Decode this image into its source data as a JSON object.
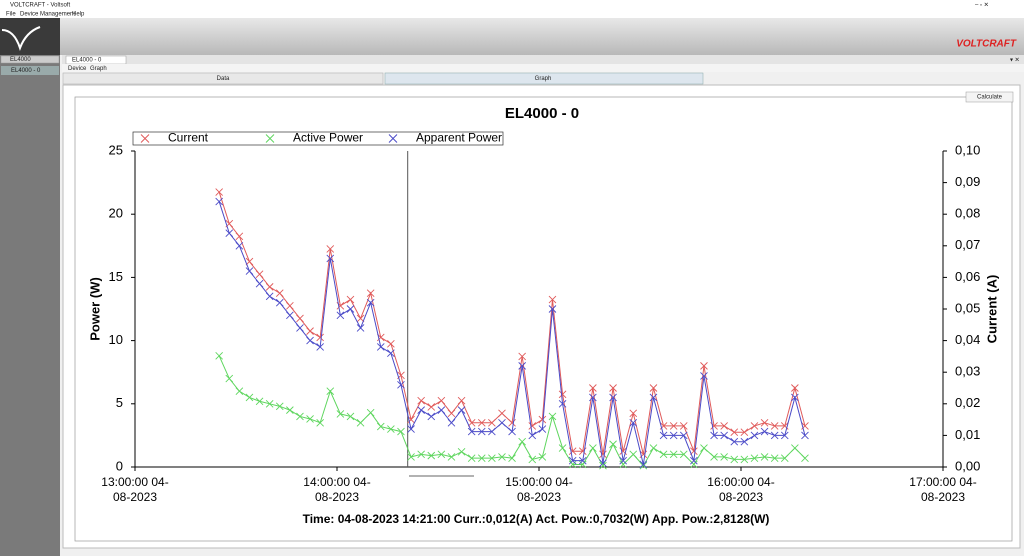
{
  "ui": {
    "window_title": "VOLTCRAFT - Voltsoft",
    "menu": [
      "File",
      "Device Management",
      "Help"
    ],
    "brand": "VOLTCRAFT",
    "sidebar": [
      "EL4000",
      "EL4000 - 0"
    ],
    "tab": "EL4000 - 0",
    "subtabs": [
      "Device",
      "Graph"
    ],
    "buttons": [
      "Data",
      "Graph"
    ],
    "calculate": "Calculate"
  },
  "chart_data": {
    "type": "line",
    "title": "EL4000 - 0",
    "y_label": "Power (W)",
    "y2_label": "Current (A)",
    "readout": "Time: 04-08-2023 14:21:00 Curr.:0,012(A) Act. Pow.:0,7032(W) App. Pow.:2,8128(W)",
    "cursor_x": "14:21:00 04-08-2023",
    "x": [
      "13:25:00 04-08-2023",
      "13:28:00 04-08-2023",
      "13:31:00 04-08-2023",
      "13:34:00 04-08-2023",
      "13:37:00 04-08-2023",
      "13:40:00 04-08-2023",
      "13:43:00 04-08-2023",
      "13:46:00 04-08-2023",
      "13:49:00 04-08-2023",
      "13:52:00 04-08-2023",
      "13:55:00 04-08-2023",
      "13:58:00 04-08-2023",
      "14:01:00 04-08-2023",
      "14:04:00 04-08-2023",
      "14:07:00 04-08-2023",
      "14:10:00 04-08-2023",
      "14:13:00 04-08-2023",
      "14:16:00 04-08-2023",
      "14:19:00 04-08-2023",
      "14:22:00 04-08-2023",
      "14:25:00 04-08-2023",
      "14:28:00 04-08-2023",
      "14:31:00 04-08-2023",
      "14:34:00 04-08-2023",
      "14:37:00 04-08-2023",
      "14:40:00 04-08-2023",
      "14:43:00 04-08-2023",
      "14:46:00 04-08-2023",
      "14:49:00 04-08-2023",
      "14:52:00 04-08-2023",
      "14:55:00 04-08-2023",
      "14:58:00 04-08-2023",
      "15:01:00 04-08-2023",
      "15:04:00 04-08-2023",
      "15:07:00 04-08-2023",
      "15:10:00 04-08-2023",
      "15:13:00 04-08-2023",
      "15:16:00 04-08-2023",
      "15:19:00 04-08-2023",
      "15:22:00 04-08-2023",
      "15:25:00 04-08-2023",
      "15:28:00 04-08-2023",
      "15:31:00 04-08-2023",
      "15:34:00 04-08-2023",
      "15:37:00 04-08-2023",
      "15:40:00 04-08-2023",
      "15:43:00 04-08-2023",
      "15:46:00 04-08-2023",
      "15:49:00 04-08-2023",
      "15:52:00 04-08-2023",
      "15:55:00 04-08-2023",
      "15:58:00 04-08-2023",
      "16:01:00 04-08-2023",
      "16:04:00 04-08-2023",
      "16:07:00 04-08-2023",
      "16:10:00 04-08-2023",
      "16:13:00 04-08-2023",
      "16:16:00 04-08-2023",
      "16:19:00 04-08-2023"
    ],
    "series": [
      {
        "name": "Current",
        "color": "#e05a5a",
        "axis": "y2",
        "values": [
          0.087,
          0.077,
          0.073,
          0.065,
          0.061,
          0.057,
          0.055,
          0.051,
          0.047,
          0.043,
          0.041,
          0.069,
          0.051,
          0.053,
          0.047,
          0.055,
          0.041,
          0.039,
          0.029,
          0.015,
          0.021,
          0.019,
          0.021,
          0.017,
          0.021,
          0.014,
          0.014,
          0.014,
          0.017,
          0.014,
          0.035,
          0.013,
          0.015,
          0.053,
          0.023,
          0.005,
          0.005,
          0.025,
          0.004,
          0.025,
          0.005,
          0.017,
          0.004,
          0.025,
          0.013,
          0.013,
          0.013,
          0.005,
          0.032,
          0.013,
          0.013,
          0.011,
          0.011,
          0.013,
          0.014,
          0.013,
          0.013,
          0.025,
          0.013
        ]
      },
      {
        "name": "Active Power",
        "color": "#5ed65e",
        "values": [
          8.8,
          7,
          6,
          5.5,
          5.2,
          5,
          4.8,
          4.5,
          4,
          3.8,
          3.5,
          6,
          4.2,
          4,
          3.5,
          4.3,
          3.2,
          3,
          2.8,
          0.8,
          1,
          0.9,
          1,
          0.8,
          1.2,
          0.7,
          0.7,
          0.7,
          0.8,
          0.7,
          2,
          0.6,
          0.8,
          4,
          1.5,
          0.2,
          0.2,
          1.5,
          0.1,
          1.8,
          0.2,
          1,
          0.1,
          1.5,
          1,
          1,
          1,
          0.2,
          1.5,
          0.8,
          0.8,
          0.6,
          0.6,
          0.7,
          0.8,
          0.7,
          0.7,
          1.5,
          0.7
        ]
      },
      {
        "name": "Apparent Power",
        "color": "#4b4bc8",
        "values": [
          21,
          18.5,
          17.5,
          15.5,
          14.5,
          13.5,
          13,
          12,
          11,
          10,
          9.5,
          16.5,
          12,
          12.5,
          11,
          13,
          9.5,
          9,
          6.5,
          3,
          4.5,
          4,
          4.5,
          3.5,
          4.5,
          2.8,
          2.8,
          2.8,
          3.5,
          2.8,
          8,
          2.5,
          3,
          12.5,
          5,
          0.5,
          0.5,
          5.5,
          0.3,
          5.5,
          0.5,
          3.5,
          0.2,
          5.5,
          2.5,
          2.5,
          2.5,
          0.5,
          7.2,
          2.5,
          2.5,
          2,
          2,
          2.5,
          2.8,
          2.5,
          2.5,
          5.5,
          2.5
        ]
      }
    ],
    "xlim": [
      "13:00:00 04-08-2023",
      "17:00:00 04-08-2023"
    ],
    "xticks": [
      "13:00:00 04-08-2023",
      "14:00:00 04-08-2023",
      "15:00:00 04-08-2023",
      "16:00:00 04-08-2023",
      "17:00:00 04-08-2023"
    ],
    "ylim": [
      0,
      25
    ],
    "yticks": [
      0,
      5,
      10,
      15,
      20,
      25
    ],
    "y2lim": [
      0,
      0.1
    ],
    "y2ticks": [
      {
        "value": 0,
        "label": "0,00"
      },
      {
        "value": 0.01,
        "label": "0,01"
      },
      {
        "value": 0.02,
        "label": "0,02"
      },
      {
        "value": 0.03,
        "label": "0,03"
      },
      {
        "value": 0.04,
        "label": "0,04"
      },
      {
        "value": 0.05,
        "label": "0,05"
      },
      {
        "value": 0.06,
        "label": "0,06"
      },
      {
        "value": 0.07,
        "label": "0,07"
      },
      {
        "value": 0.08,
        "label": "0,08"
      },
      {
        "value": 0.09,
        "label": "0,09"
      },
      {
        "value": 0.1,
        "label": "0,10"
      }
    ],
    "grid": false
  }
}
